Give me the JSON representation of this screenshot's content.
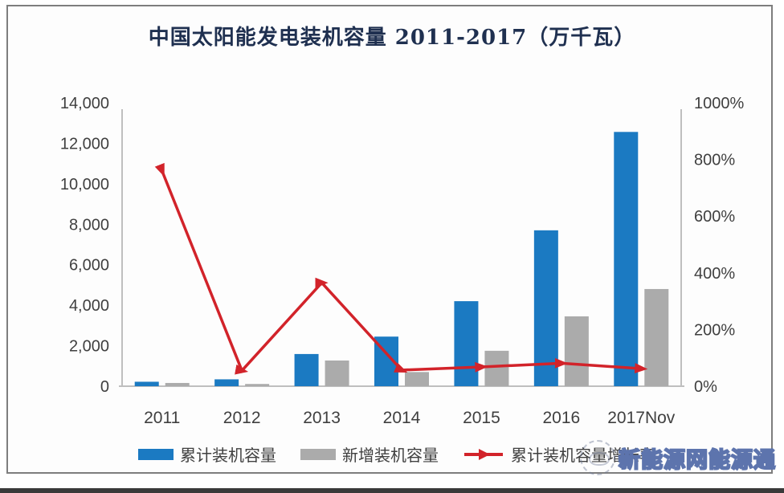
{
  "title": "中国太阳能发电装机容量 2011-2017（万千瓦）",
  "chart_data": {
    "type": "bar",
    "subtype": "combo-bar-line-dual-axis",
    "title": "中国太阳能发电装机容量 2011-2017（万千瓦）",
    "categories": [
      "2011",
      "2012",
      "2013",
      "2014",
      "2015",
      "2016",
      "2017Nov"
    ],
    "series": [
      {
        "name": "累计装机容量",
        "type": "bar",
        "axis": "left",
        "color": "#1b7ac2",
        "values": [
          220,
          340,
          1590,
          2450,
          4200,
          7700,
          12560
        ]
      },
      {
        "name": "新增装机容量",
        "type": "bar",
        "axis": "left",
        "color": "#ababab",
        "values": [
          160,
          110,
          1270,
          700,
          1750,
          3450,
          4800
        ]
      },
      {
        "name": "累计装机容量增长率",
        "type": "line",
        "axis": "right",
        "color": "#d2232a",
        "values": [
          760,
          55,
          365,
          57,
          68,
          81,
          62
        ]
      }
    ],
    "left_axis": {
      "min": 0,
      "max": 14000,
      "tick_labels": [
        "14,000",
        "12,000",
        "10,000",
        "8,000",
        "6,000",
        "4,000",
        "2,000",
        "0"
      ]
    },
    "right_axis": {
      "min": 0,
      "max": 1000,
      "tick_labels": [
        "1000%",
        "800%",
        "600%",
        "400%",
        "200%",
        "0%"
      ]
    },
    "grid": false,
    "legend_position": "bottom",
    "axis_line_color": "#bfbfbf",
    "tick_text_color": "#3f3f3f"
  },
  "legend": {
    "items": [
      {
        "label": "累计装机容量",
        "marker": "bar",
        "color": "#1b7ac2"
      },
      {
        "label": "新增装机容量",
        "marker": "bar",
        "color": "#ababab"
      },
      {
        "label": "累计装机容量增长率",
        "marker": "line-arrow",
        "color": "#d2232a"
      }
    ]
  },
  "watermark": {
    "text": "新能源网能源通",
    "logo_icon": "circular-sketch-logo"
  },
  "colors": {
    "bar_blue": "#1b7ac2",
    "bar_gray": "#ababab",
    "line_red": "#d2232a",
    "title_text": "#1f3050",
    "frame_border": "#7e7e7e",
    "bottom_bar": "#3a3a3a"
  }
}
